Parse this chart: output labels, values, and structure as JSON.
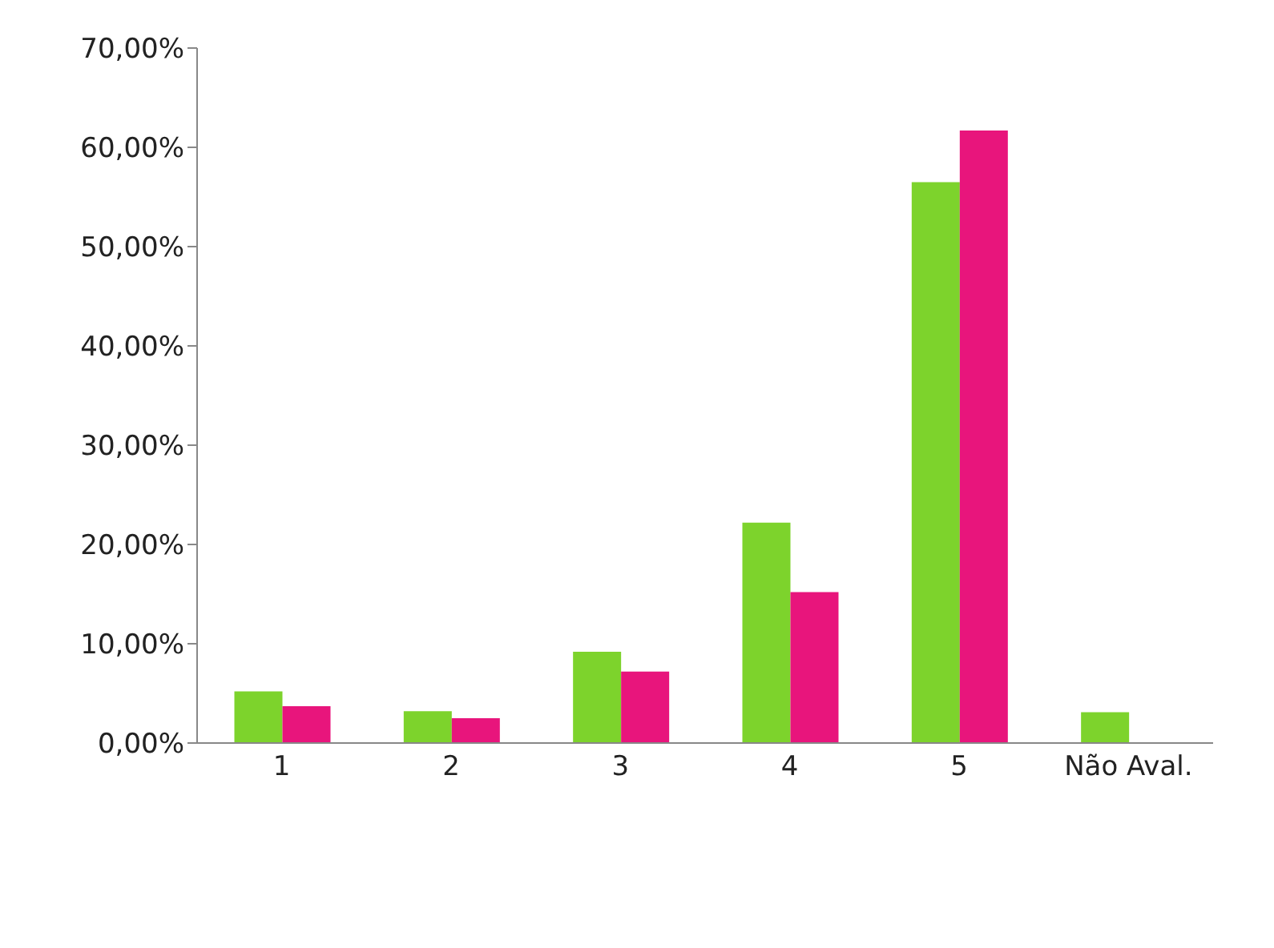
{
  "chart_data": {
    "type": "bar",
    "categories": [
      "1",
      "2",
      "3",
      "4",
      "5",
      "Não Aval."
    ],
    "series": [
      {
        "color": "#7dd32c",
        "values": [
          5.2,
          3.2,
          9.2,
          22.2,
          56.5,
          3.1
        ]
      },
      {
        "color": "#e8157c",
        "values": [
          3.7,
          2.5,
          7.2,
          15.2,
          61.7,
          null
        ]
      }
    ],
    "ylim": [
      0,
      70
    ],
    "yticks": [
      {
        "value": 0,
        "label": "0,00%"
      },
      {
        "value": 10,
        "label": "10,00%"
      },
      {
        "value": 20,
        "label": "20,00%"
      },
      {
        "value": 30,
        "label": "30,00%"
      },
      {
        "value": 40,
        "label": "40,00%"
      },
      {
        "value": 50,
        "label": "50,00%"
      },
      {
        "value": 60,
        "label": "60,00%"
      },
      {
        "value": 70,
        "label": "70,00%"
      }
    ],
    "grid": false
  }
}
